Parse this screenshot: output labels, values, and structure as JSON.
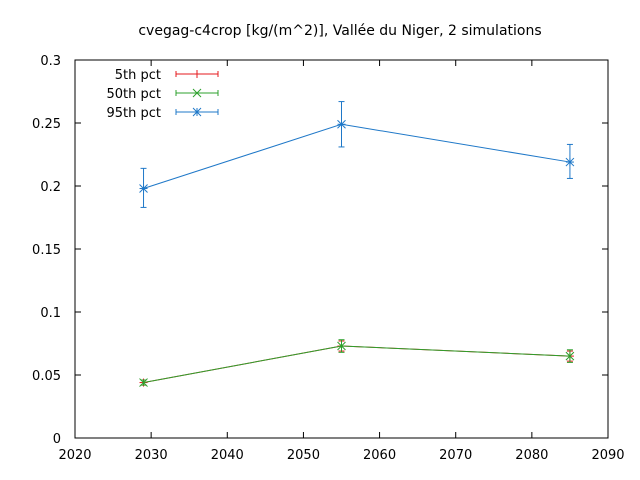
{
  "chart_data": {
    "type": "line",
    "title": "cvegag-c4crop [kg/(m^2)], Vallée du Niger, 2 simulations",
    "xlabel": "",
    "ylabel": "",
    "xlim": [
      2020,
      2090
    ],
    "ylim": [
      0,
      0.3
    ],
    "x_ticks": [
      2020,
      2030,
      2040,
      2050,
      2060,
      2070,
      2080,
      2090
    ],
    "x_tick_labels": [
      "2020",
      "2030",
      "2040",
      "2050",
      "2060",
      "2070",
      "2080",
      "2090"
    ],
    "y_ticks": [
      0,
      0.05,
      0.1,
      0.15,
      0.2,
      0.25,
      0.3
    ],
    "y_tick_labels": [
      "0",
      "0.05",
      "0.1",
      "0.15",
      "0.2",
      "0.25",
      "0.3"
    ],
    "grid": false,
    "legend_position": "top-left",
    "x": [
      2029,
      2055,
      2085
    ],
    "series": [
      {
        "name": "5th pct",
        "color": "#e41a1c",
        "marker": "plus",
        "values": [
          0.044,
          0.073,
          0.065
        ],
        "err_low": [
          0.042,
          0.069,
          0.061
        ],
        "err_high": [
          0.046,
          0.077,
          0.069
        ]
      },
      {
        "name": "50th pct",
        "color": "#2ca02c",
        "marker": "cross",
        "values": [
          0.044,
          0.073,
          0.065
        ],
        "err_low": [
          0.042,
          0.068,
          0.06
        ],
        "err_high": [
          0.046,
          0.078,
          0.07
        ]
      },
      {
        "name": "95th pct",
        "color": "#1f78c8",
        "marker": "star",
        "values": [
          0.198,
          0.249,
          0.219
        ],
        "err_low": [
          0.183,
          0.231,
          0.206
        ],
        "err_high": [
          0.214,
          0.267,
          0.233
        ]
      }
    ]
  }
}
